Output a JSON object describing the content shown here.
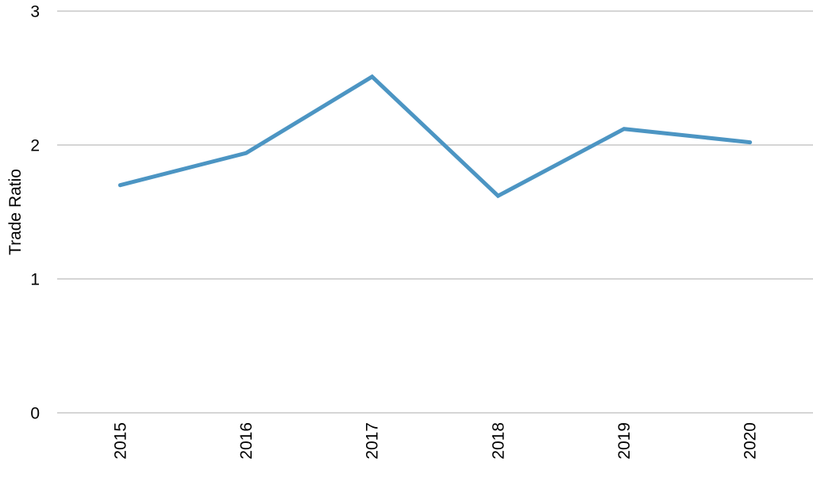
{
  "chart_data": {
    "type": "line",
    "title": "",
    "xlabel": "",
    "ylabel": "Trade Ratio",
    "categories": [
      "2015",
      "2016",
      "2017",
      "2018",
      "2019",
      "2020"
    ],
    "series": [
      {
        "name": "Trade Ratio",
        "values": [
          1.7,
          1.94,
          2.51,
          1.62,
          2.12,
          2.02
        ]
      }
    ],
    "ylim": [
      0,
      3
    ],
    "yticks": [
      0,
      1,
      2,
      3
    ],
    "grid": "horizontal",
    "legend": "none",
    "x_tick_rotation_degrees": 90,
    "colors": {
      "line": "#4c95c3",
      "gridline": "#c7c7c7",
      "text": "#000000",
      "background": "#ffffff"
    }
  }
}
